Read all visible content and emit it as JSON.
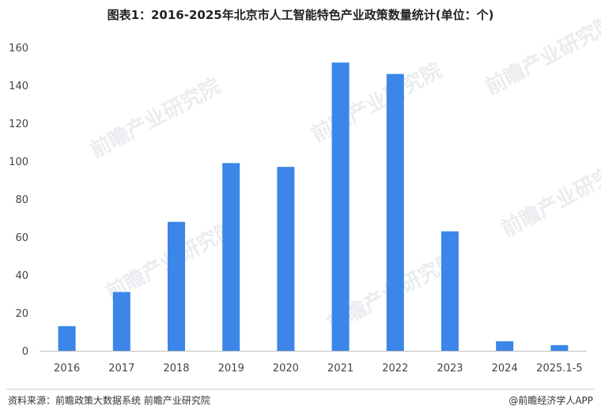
{
  "chart_data": {
    "type": "bar",
    "title": "图表1：2016-2025年北京市人工智能特色产业政策数量统计(单位：个)",
    "categories": [
      "2016",
      "2017",
      "2018",
      "2019",
      "2020",
      "2021",
      "2022",
      "2023",
      "2024",
      "2025.1-5"
    ],
    "values": [
      13,
      31,
      68,
      99,
      97,
      152,
      146,
      63,
      5,
      3
    ],
    "ylim": [
      0,
      160
    ],
    "yticks": [
      0,
      20,
      40,
      60,
      80,
      100,
      120,
      140,
      160
    ],
    "xlabel": "",
    "ylabel": "",
    "grid": false,
    "bar_color": "#3b86e8"
  },
  "footer": {
    "source": "资料来源：前瞻政策大数据系统 前瞻产业研究院",
    "brand": "@前瞻经济学人APP"
  },
  "watermark": "前瞻产业研究院"
}
